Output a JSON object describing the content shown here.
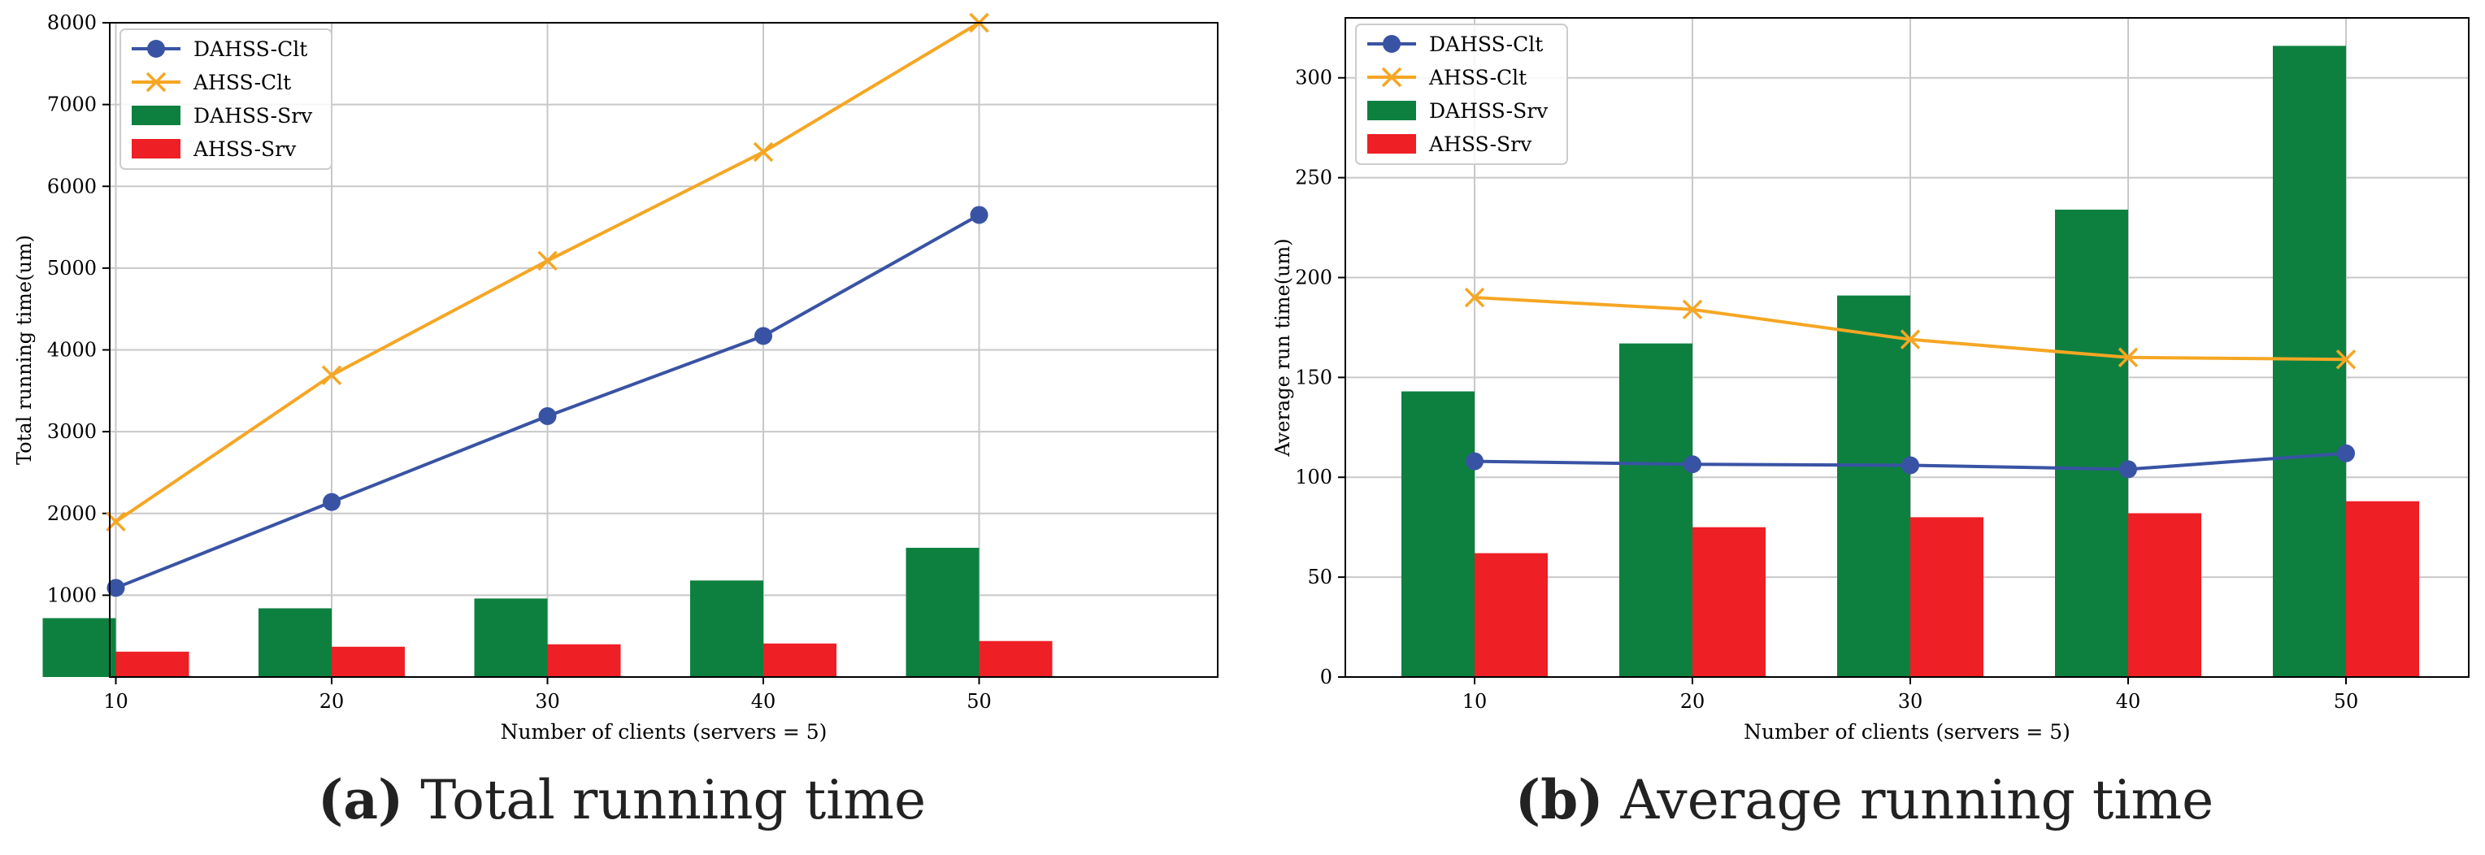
{
  "colors": {
    "dahss_clt": "#3953a4",
    "ahss_clt": "#f5a623",
    "dahss_srv": "#0d8040",
    "ahss_srv": "#ee1f25",
    "grid": "#c8c8c8",
    "axis": "#000000"
  },
  "chart_data": [
    {
      "id": "a",
      "type": "bar",
      "caption_label": "(a)",
      "caption_text": "Total running time",
      "xlabel": "Number of clients (servers = 5)",
      "ylabel": "Total running time(um)",
      "categories": [
        "10",
        "20",
        "30",
        "40",
        "50"
      ],
      "ylim": [
        0,
        8000
      ],
      "yticks": [
        1000,
        2000,
        3000,
        4000,
        5000,
        6000,
        7000,
        8000
      ],
      "grid": true,
      "legend_position": "top-left",
      "bar_series": [
        {
          "name": "DAHSS-Srv",
          "values": [
            720,
            840,
            960,
            1180,
            1580
          ]
        },
        {
          "name": "AHSS-Srv",
          "values": [
            310,
            370,
            400,
            410,
            440
          ]
        }
      ],
      "line_series": [
        {
          "name": "DAHSS-Clt",
          "marker": "circle",
          "values": [
            1090,
            2140,
            3190,
            4170,
            5650
          ]
        },
        {
          "name": "AHSS-Clt",
          "marker": "x",
          "values": [
            1900,
            3690,
            5090,
            6420,
            8000
          ]
        }
      ],
      "legend": [
        "DAHSS-Clt",
        "AHSS-Clt",
        "DAHSS-Srv",
        "AHSS-Srv"
      ]
    },
    {
      "id": "b",
      "type": "bar",
      "caption_label": "(b)",
      "caption_text": "Average running time",
      "xlabel": "Number of clients (servers = 5)",
      "ylabel": "Average run time(um)",
      "categories": [
        "10",
        "20",
        "30",
        "40",
        "50"
      ],
      "ylim": [
        0,
        330
      ],
      "yticks": [
        0,
        50,
        100,
        150,
        200,
        250,
        300
      ],
      "grid": true,
      "legend_position": "top-left",
      "bar_series": [
        {
          "name": "DAHSS-Srv",
          "values": [
            143,
            167,
            191,
            234,
            316
          ]
        },
        {
          "name": "AHSS-Srv",
          "values": [
            62,
            75,
            80,
            82,
            88
          ]
        }
      ],
      "line_series": [
        {
          "name": "DAHSS-Clt",
          "marker": "circle",
          "values": [
            108,
            106.5,
            106,
            104,
            112
          ]
        },
        {
          "name": "AHSS-Clt",
          "marker": "x",
          "values": [
            190,
            184,
            169,
            160,
            159
          ]
        }
      ],
      "legend": [
        "DAHSS-Clt",
        "AHSS-Clt",
        "DAHSS-Srv",
        "AHSS-Srv"
      ]
    }
  ]
}
